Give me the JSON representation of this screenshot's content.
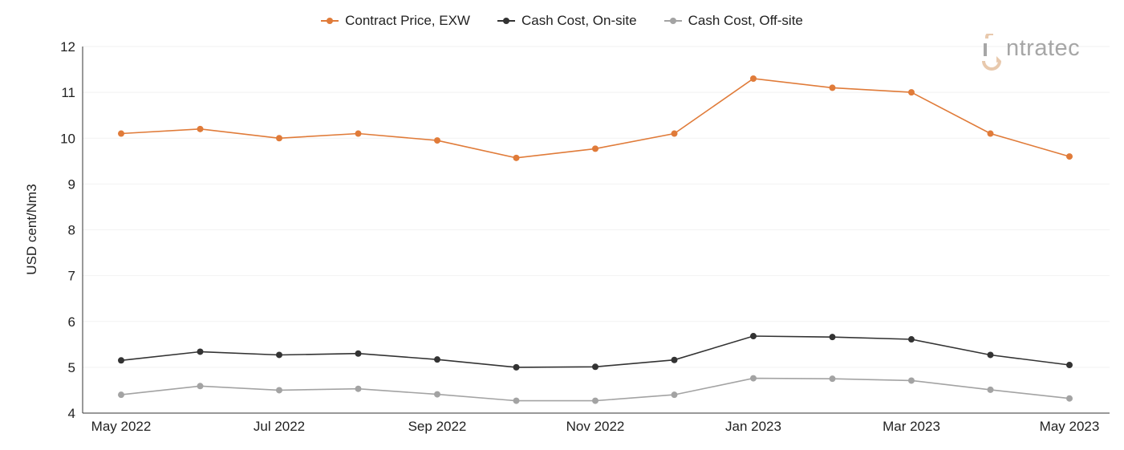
{
  "colors": {
    "contract": "#e07b39",
    "onsite": "#333333",
    "offsite": "#a3a3a3",
    "axis": "#333333",
    "grid": "#f2f2f2",
    "logo_text": "#a6a6a6",
    "logo_accent": "#e8c9ad"
  },
  "logo": {
    "text": "ntratec"
  },
  "chart_data": {
    "type": "line",
    "xlabel": "",
    "ylabel": "USD cent/Nm3",
    "ylim": [
      4,
      12
    ],
    "yticks": [
      "4",
      "5",
      "6",
      "7",
      "8",
      "9",
      "10",
      "11",
      "12"
    ],
    "grid": true,
    "legend_position": "top-center",
    "x": [
      "May 2022",
      "Jun 2022",
      "Jul 2022",
      "Aug 2022",
      "Sep 2022",
      "Oct 2022",
      "Nov 2022",
      "Dec 2022",
      "Jan 2023",
      "Feb 2023",
      "Mar 2023",
      "Apr 2023",
      "May 2023"
    ],
    "xtick_labels": [
      "May 2022",
      "Jul 2022",
      "Sep 2022",
      "Nov 2022",
      "Jan 2023",
      "Mar 2023",
      "May 2023"
    ],
    "series": [
      {
        "name": "Contract Price, EXW",
        "color": "#e07b39",
        "values": [
          10.1,
          10.2,
          10.0,
          10.1,
          9.95,
          9.57,
          9.77,
          10.1,
          11.3,
          11.1,
          11.0,
          10.1,
          9.6
        ]
      },
      {
        "name": "Cash Cost, On-site",
        "color": "#333333",
        "values": [
          5.15,
          5.34,
          5.27,
          5.3,
          5.17,
          5.0,
          5.01,
          5.16,
          5.68,
          5.66,
          5.61,
          5.27,
          5.05
        ]
      },
      {
        "name": "Cash Cost, Off-site",
        "color": "#a3a3a3",
        "values": [
          4.4,
          4.59,
          4.5,
          4.53,
          4.41,
          4.27,
          4.27,
          4.4,
          4.76,
          4.75,
          4.71,
          4.51,
          4.32
        ]
      }
    ]
  }
}
